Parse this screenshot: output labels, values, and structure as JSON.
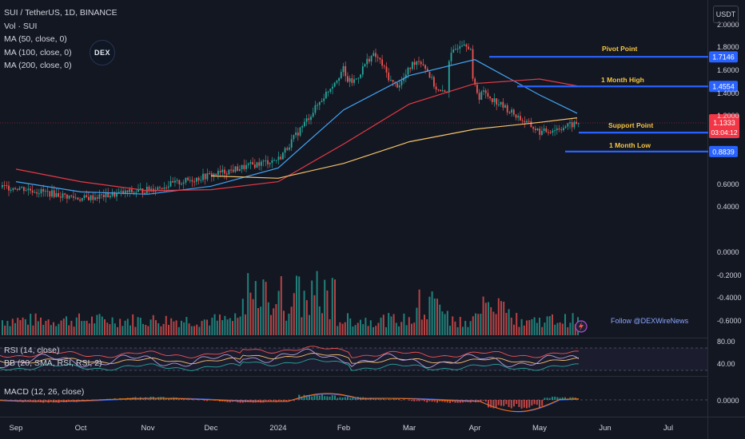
{
  "legend": {
    "symbol": "SUI / TetherUS, 1D, BINANCE",
    "vol": "Vol · SUI",
    "ma50": "MA (50, close, 0)",
    "ma100": "MA (100, close, 0)",
    "ma200": "MA (200, close, 0)"
  },
  "logo": {
    "text": "DEX"
  },
  "currency_button": "USDT",
  "indicators": {
    "rsi": "RSI (14, close)",
    "bb": "BB (20, SMA, RSI, RSI, 2)",
    "macd": "MACD (12, 26, close)"
  },
  "follow_text": "Follow @DEXWireNews",
  "levels": {
    "pivot": {
      "label": "Pivot Point",
      "value": "1.7146"
    },
    "high": {
      "label": "1 Month High",
      "value": "1.4554"
    },
    "support": {
      "label": "Support Point",
      "value": "1.0500"
    },
    "low": {
      "label": "1 Month Low",
      "value": "0.8839"
    }
  },
  "current_price": {
    "value": "1.1333",
    "countdown": "03:04:12"
  },
  "colors": {
    "background": "#131722",
    "up": "#26a69a",
    "down": "#ef5350",
    "ma50": "#42a5f5",
    "ma100": "#e53945",
    "ma200": "#f5c26b",
    "level_line": "#2962ff",
    "level_label": "#f5c542",
    "price_tag": "#f23645"
  },
  "chart_data": {
    "type": "line",
    "title": "SUI / TetherUS, 1D, BINANCE",
    "x_ticks": [
      "Sep",
      "Oct",
      "Nov",
      "Dec",
      "2024",
      "Feb",
      "Mar",
      "Apr",
      "May",
      "Jun",
      "Jul"
    ],
    "price_axis_ticks": [
      "2.0000",
      "1.8000",
      "1.6000",
      "1.4000",
      "1.2000",
      "0.6000",
      "0.4000",
      "0.0000",
      "-0.2000",
      "-0.4000",
      "-0.6000"
    ],
    "rsi_axis_ticks": [
      "80.00",
      "40.00"
    ],
    "macd_axis_ticks": [
      "0.0000"
    ],
    "series": [
      {
        "name": "Price (close)",
        "x": [
          "Sep",
          "Oct",
          "Nov",
          "Dec",
          "2024",
          "Feb",
          "Mar",
          "Apr",
          "May",
          "May 22"
        ],
        "values": [
          0.57,
          0.47,
          0.55,
          0.68,
          0.82,
          1.62,
          1.58,
          1.45,
          1.05,
          1.13
        ]
      },
      {
        "name": "MA (50, close, 0)",
        "x": [
          "Sep",
          "Oct",
          "Nov",
          "Dec",
          "2024",
          "Feb",
          "Mar",
          "Apr",
          "May",
          "May 22"
        ],
        "values": [
          0.62,
          0.53,
          0.51,
          0.58,
          0.74,
          1.25,
          1.55,
          1.69,
          1.38,
          1.22
        ]
      },
      {
        "name": "MA (100, close, 0)",
        "x": [
          "Sep",
          "Oct",
          "Nov",
          "Dec",
          "2024",
          "Feb",
          "Mar",
          "Apr",
          "May",
          "May 22"
        ],
        "values": [
          0.73,
          0.62,
          0.54,
          0.55,
          0.62,
          0.95,
          1.3,
          1.48,
          1.52,
          1.46
        ]
      },
      {
        "name": "MA (200, close, 0)",
        "x": [
          "Dec",
          "2024",
          "Feb",
          "Mar",
          "Apr",
          "May",
          "May 22"
        ],
        "values": [
          0.67,
          0.65,
          0.78,
          0.97,
          1.08,
          1.14,
          1.18
        ]
      }
    ],
    "levels": [
      {
        "name": "Pivot Point",
        "value": 1.7146
      },
      {
        "name": "1 Month High",
        "value": 1.4554
      },
      {
        "name": "Support Point",
        "value": 1.05
      },
      {
        "name": "1 Month Low",
        "value": 0.8839
      }
    ],
    "current_price": 1.1333
  }
}
